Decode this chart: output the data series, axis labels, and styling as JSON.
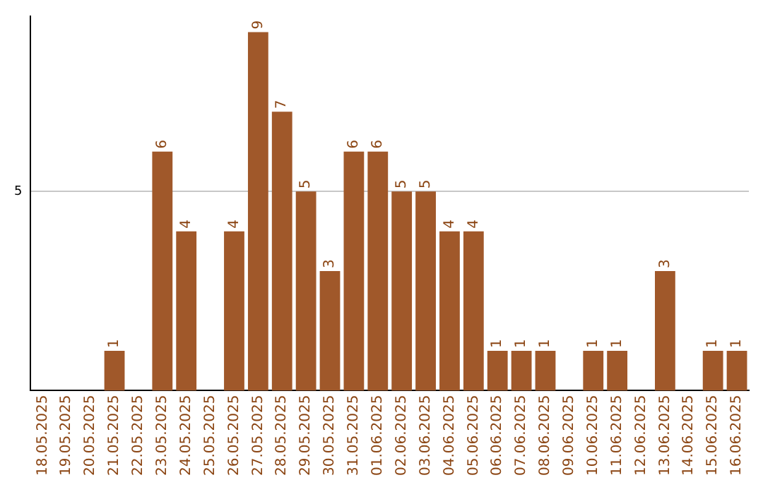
{
  "chart_data": {
    "type": "bar",
    "categories": [
      "18.05.2025",
      "19.05.2025",
      "20.05.2025",
      "21.05.2025",
      "22.05.2025",
      "23.05.2025",
      "24.05.2025",
      "25.05.2025",
      "26.05.2025",
      "27.05.2025",
      "28.05.2025",
      "29.05.2025",
      "30.05.2025",
      "31.05.2025",
      "01.06.2025",
      "02.06.2025",
      "03.06.2025",
      "04.06.2025",
      "05.06.2025",
      "06.06.2025",
      "07.06.2025",
      "08.06.2025",
      "09.06.2025",
      "10.06.2025",
      "11.06.2025",
      "12.06.2025",
      "13.06.2025",
      "14.06.2025",
      "15.06.2025",
      "16.06.2025"
    ],
    "values": [
      0,
      0,
      0,
      1,
      0,
      6,
      4,
      0,
      4,
      9,
      7,
      5,
      3,
      6,
      6,
      5,
      5,
      4,
      4,
      1,
      1,
      1,
      0,
      1,
      1,
      0,
      3,
      0,
      1,
      1
    ],
    "value_labels": [
      null,
      null,
      null,
      "1",
      null,
      "6",
      "4",
      null,
      "4",
      "9",
      "7",
      "5",
      "3",
      "6",
      "6",
      "5",
      "5",
      "4",
      "4",
      "1",
      "1",
      "1",
      null,
      "1",
      "1",
      null,
      "3",
      null,
      "1",
      "1"
    ],
    "color": "#a0582a",
    "ylim": [
      0,
      9.4
    ],
    "yticks": [
      5
    ],
    "grid": "y"
  }
}
